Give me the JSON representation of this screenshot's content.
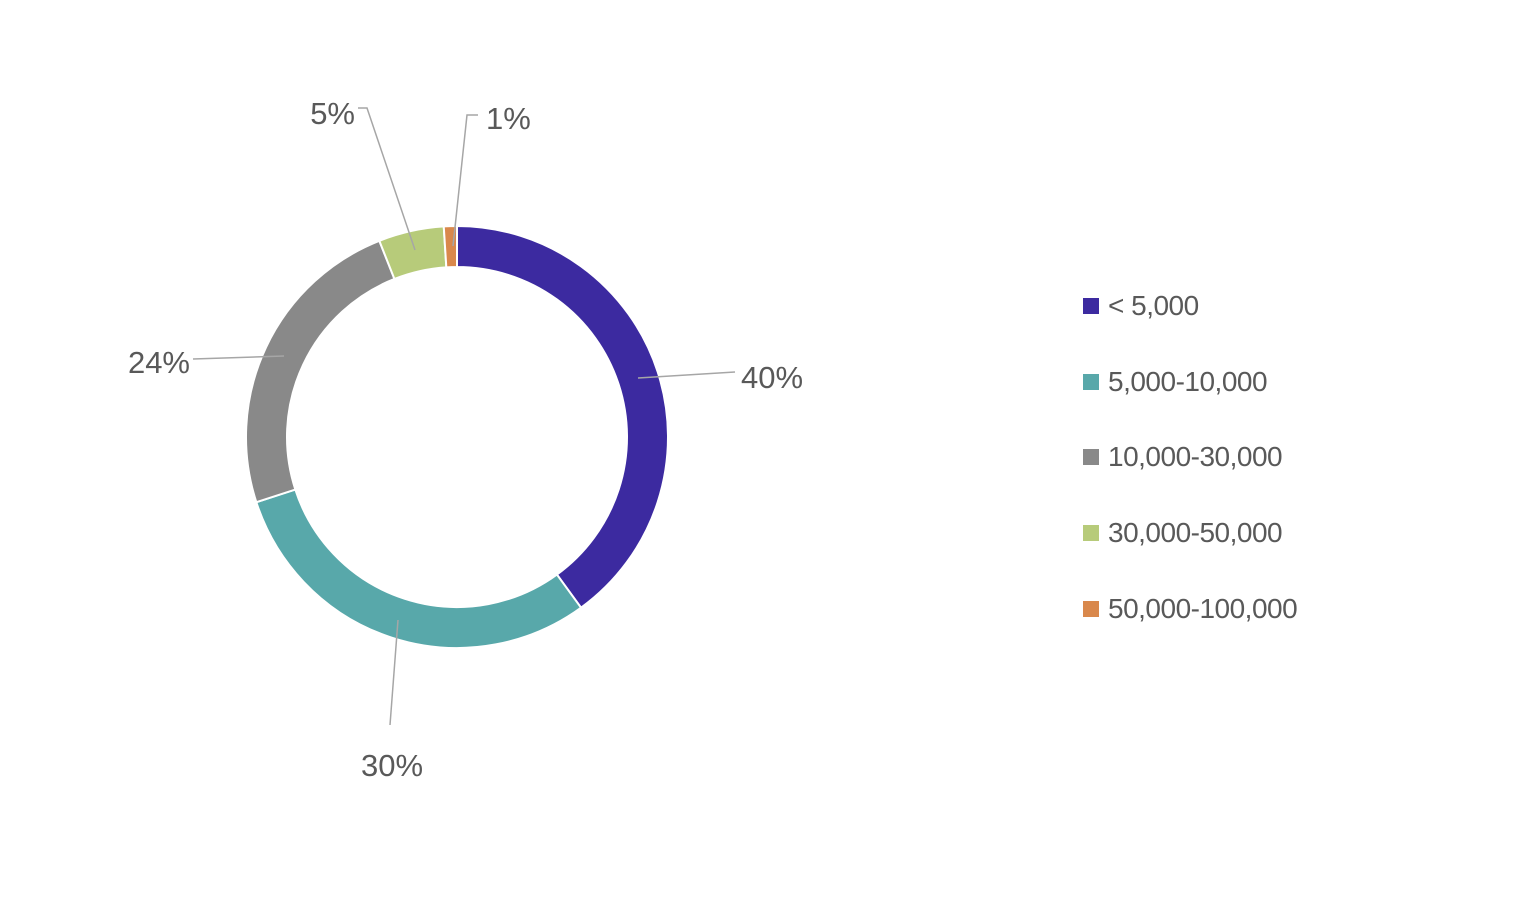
{
  "chart_data": {
    "type": "pie",
    "variant": "donut",
    "title": "",
    "categories": [
      "< 5,000",
      "5,000-10,000",
      "10,000-30,000",
      "30,000-50,000",
      "50,000-100,000"
    ],
    "values": [
      40,
      30,
      24,
      5,
      1
    ],
    "value_labels": [
      "40%",
      "30%",
      "24%",
      "5%",
      "1%"
    ],
    "colors": [
      "#3c2aa0",
      "#58a8aa",
      "#898989",
      "#b7cb7a",
      "#d9884c"
    ],
    "legend_position": "right",
    "unit": "%"
  },
  "legend": {
    "items": [
      {
        "label": "< 5,000",
        "color": "#3c2aa0"
      },
      {
        "label": "5,000-10,000",
        "color": "#58a8aa"
      },
      {
        "label": "10,000-30,000",
        "color": "#898989"
      },
      {
        "label": "30,000-50,000",
        "color": "#b7cb7a"
      },
      {
        "label": "50,000-100,000",
        "color": "#d9884c"
      }
    ]
  }
}
